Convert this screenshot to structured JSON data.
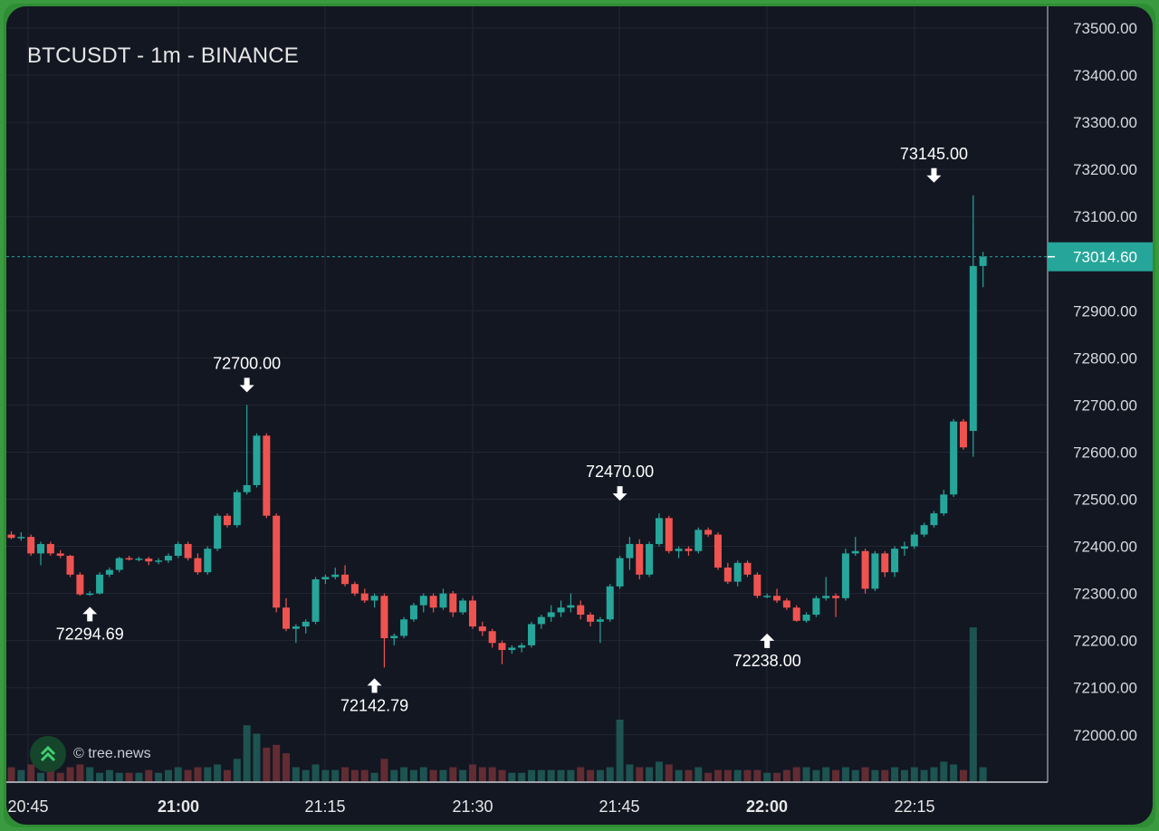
{
  "title": "BTCUSDT - 1m - BINANCE",
  "watermark": {
    "text": "© tree.news",
    "icon": "double-chevron-up-icon"
  },
  "colors": {
    "background": "#131722",
    "grid": "#232734",
    "up": "#26a69a",
    "down": "#ef5350",
    "text": "#e6e6e6",
    "last_price_badge": "#26a69a"
  },
  "chart_data": {
    "type": "candlestick",
    "interval": "1m",
    "x_ticks": [
      {
        "label": "20:45",
        "bold": false
      },
      {
        "label": "21:00",
        "bold": true
      },
      {
        "label": "21:15",
        "bold": false
      },
      {
        "label": "21:30",
        "bold": false
      },
      {
        "label": "21:45",
        "bold": false
      },
      {
        "label": "22:00",
        "bold": true
      },
      {
        "label": "22:15",
        "bold": false
      }
    ],
    "y_ticks": [
      "73500.00",
      "73400.00",
      "73300.00",
      "73200.00",
      "73100.00",
      "72900.00",
      "72800.00",
      "72700.00",
      "72600.00",
      "72500.00",
      "72400.00",
      "72300.00",
      "72200.00",
      "72100.00",
      "72000.00"
    ],
    "ylim": [
      71900,
      73550
    ],
    "last_price": "73014.60",
    "annotations": [
      {
        "label": "72294.69",
        "price": 72294.69,
        "type": "low",
        "bar": 8
      },
      {
        "label": "72700.00",
        "price": 72700.0,
        "type": "high",
        "bar": 24
      },
      {
        "label": "72142.79",
        "price": 72142.79,
        "type": "low",
        "bar": 37
      },
      {
        "label": "72470.00",
        "price": 72470.0,
        "type": "high",
        "bar": 62
      },
      {
        "label": "72238.00",
        "price": 72238.0,
        "type": "low",
        "bar": 77
      },
      {
        "label": "73145.00",
        "price": 73145.0,
        "type": "high",
        "bar": 94
      }
    ],
    "candles": [
      [
        72425,
        72432,
        72415,
        72418,
        5
      ],
      [
        72418,
        72430,
        72412,
        72420,
        4
      ],
      [
        72420,
        72425,
        72380,
        72385,
        6
      ],
      [
        72385,
        72410,
        72360,
        72405,
        3
      ],
      [
        72405,
        72410,
        72380,
        72385,
        4
      ],
      [
        72385,
        72392,
        72375,
        72380,
        3
      ],
      [
        72380,
        72382,
        72335,
        72340,
        5
      ],
      [
        72340,
        72345,
        72295,
        72298,
        6
      ],
      [
        72298,
        72305,
        72294.69,
        72300,
        5
      ],
      [
        72300,
        72345,
        72298,
        72340,
        3
      ],
      [
        72340,
        72355,
        72335,
        72350,
        4
      ],
      [
        72350,
        72378,
        72345,
        72375,
        3
      ],
      [
        72375,
        72380,
        72370,
        72372,
        3
      ],
      [
        72372,
        72378,
        72368,
        72374,
        3
      ],
      [
        72374,
        72378,
        72360,
        72368,
        4
      ],
      [
        72368,
        72375,
        72362,
        72370,
        3
      ],
      [
        72370,
        72385,
        72365,
        72380,
        4
      ],
      [
        72380,
        72410,
        72375,
        72405,
        5
      ],
      [
        72405,
        72410,
        72370,
        72375,
        4
      ],
      [
        72375,
        72385,
        72340,
        72345,
        5
      ],
      [
        72345,
        72400,
        72340,
        72395,
        5
      ],
      [
        72395,
        72470,
        72390,
        72465,
        6
      ],
      [
        72465,
        72470,
        72440,
        72445,
        4
      ],
      [
        72445,
        72520,
        72440,
        72515,
        8
      ],
      [
        72515,
        72700,
        72510,
        72530,
        20
      ],
      [
        72530,
        72640,
        72525,
        72635,
        17
      ],
      [
        72635,
        72640,
        72460,
        72465,
        12
      ],
      [
        72465,
        72470,
        72260,
        72270,
        13
      ],
      [
        72270,
        72290,
        72220,
        72225,
        10
      ],
      [
        72225,
        72235,
        72195,
        72230,
        5
      ],
      [
        72230,
        72245,
        72215,
        72240,
        4
      ],
      [
        72240,
        72335,
        72235,
        72330,
        6
      ],
      [
        72330,
        72340,
        72320,
        72335,
        4
      ],
      [
        72335,
        72355,
        72330,
        72340,
        4
      ],
      [
        72340,
        72360,
        72315,
        72320,
        5
      ],
      [
        72320,
        72325,
        72295,
        72300,
        4
      ],
      [
        72300,
        72310,
        72280,
        72285,
        4
      ],
      [
        72285,
        72300,
        72270,
        72295,
        3
      ],
      [
        72295,
        72300,
        72142.79,
        72205,
        8
      ],
      [
        72205,
        72215,
        72190,
        72210,
        4
      ],
      [
        72210,
        72250,
        72205,
        72245,
        5
      ],
      [
        72245,
        72280,
        72240,
        72275,
        4
      ],
      [
        72275,
        72300,
        72260,
        72295,
        5
      ],
      [
        72295,
        72300,
        72260,
        72270,
        4
      ],
      [
        72270,
        72310,
        72265,
        72300,
        4
      ],
      [
        72300,
        72305,
        72250,
        72260,
        5
      ],
      [
        72260,
        72290,
        72255,
        72285,
        4
      ],
      [
        72285,
        72295,
        72225,
        72230,
        6
      ],
      [
        72230,
        72240,
        72210,
        72220,
        5
      ],
      [
        72220,
        72225,
        72185,
        72195,
        5
      ],
      [
        72195,
        72200,
        72150,
        72180,
        4
      ],
      [
        72180,
        72190,
        72172,
        72185,
        3
      ],
      [
        72185,
        72195,
        72175,
        72190,
        3
      ],
      [
        72190,
        72240,
        72185,
        72235,
        4
      ],
      [
        72235,
        72255,
        72225,
        72250,
        4
      ],
      [
        72250,
        72275,
        72240,
        72260,
        4
      ],
      [
        72260,
        72285,
        72250,
        72270,
        4
      ],
      [
        72270,
        72300,
        72260,
        72275,
        4
      ],
      [
        72275,
        72285,
        72245,
        72255,
        5
      ],
      [
        72255,
        72260,
        72230,
        72240,
        4
      ],
      [
        72240,
        72250,
        72195,
        72245,
        4
      ],
      [
        72245,
        72320,
        72240,
        72315,
        5
      ],
      [
        72315,
        72380,
        72310,
        72375,
        22
      ],
      [
        72375,
        72420,
        72350,
        72405,
        6
      ],
      [
        72405,
        72415,
        72330,
        72340,
        5
      ],
      [
        72340,
        72410,
        72335,
        72405,
        5
      ],
      [
        72405,
        72470,
        72400,
        72460,
        7
      ],
      [
        72460,
        72465,
        72385,
        72390,
        6
      ],
      [
        72390,
        72400,
        72375,
        72395,
        4
      ],
      [
        72395,
        72400,
        72380,
        72390,
        4
      ],
      [
        72390,
        72440,
        72385,
        72435,
        5
      ],
      [
        72435,
        72440,
        72420,
        72425,
        3
      ],
      [
        72425,
        72430,
        72350,
        72355,
        4
      ],
      [
        72355,
        72365,
        72320,
        72325,
        4
      ],
      [
        72325,
        72370,
        72315,
        72365,
        4
      ],
      [
        72365,
        72370,
        72335,
        72340,
        4
      ],
      [
        72340,
        72345,
        72290,
        72295,
        4
      ],
      [
        72295,
        72300,
        72290,
        72295,
        3
      ],
      [
        72295,
        72310,
        72280,
        72285,
        3
      ],
      [
        72285,
        72290,
        72265,
        72270,
        4
      ],
      [
        72270,
        72275,
        72240,
        72242,
        5
      ],
      [
        72242,
        72260,
        72238,
        72255,
        5
      ],
      [
        72255,
        72295,
        72250,
        72290,
        4
      ],
      [
        72290,
        72335,
        72285,
        72295,
        5
      ],
      [
        72295,
        72300,
        72250,
        72290,
        4
      ],
      [
        72290,
        72395,
        72285,
        72385,
        5
      ],
      [
        72385,
        72420,
        72380,
        72390,
        4
      ],
      [
        72390,
        72395,
        72300,
        72310,
        5
      ],
      [
        72310,
        72390,
        72305,
        72385,
        4
      ],
      [
        72385,
        72390,
        72335,
        72345,
        4
      ],
      [
        72345,
        72400,
        72335,
        72395,
        5
      ],
      [
        72395,
        72410,
        72380,
        72400,
        4
      ],
      [
        72400,
        72430,
        72395,
        72425,
        5
      ],
      [
        72425,
        72450,
        72420,
        72445,
        4
      ],
      [
        72445,
        72475,
        72440,
        72470,
        5
      ],
      [
        72470,
        72520,
        72465,
        72510,
        7
      ],
      [
        72510,
        72670,
        72505,
        72665,
        6
      ],
      [
        72665,
        72670,
        72605,
        72610,
        4
      ],
      [
        72645,
        73145,
        72590,
        72995,
        55
      ],
      [
        72995,
        73025,
        72950,
        73014.6,
        5
      ]
    ]
  }
}
